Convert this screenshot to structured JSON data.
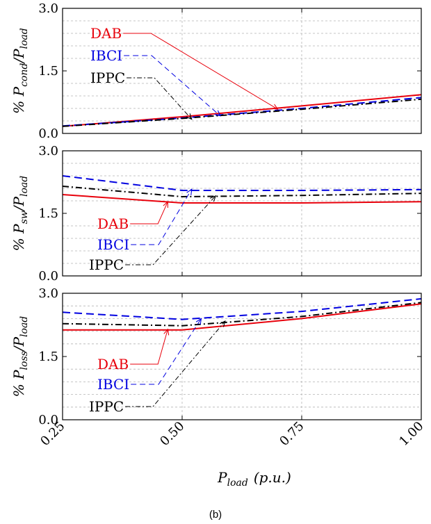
{
  "figure": {
    "caption": "(b)",
    "xlabel": "P_load (p.u.)",
    "xlabel_main": "P",
    "xlabel_sub": "load",
    "xlabel_units": "(p.u.)"
  },
  "colors": {
    "DAB": "#e8000b",
    "IBCI": "#0000e0",
    "IPPC": "#000000",
    "grid": "#b4b4b4"
  },
  "chart_data": [
    {
      "type": "line",
      "title": "",
      "ylabel": "% P_cond/P_load",
      "ylabel_main": "% P",
      "ylabel_sub1": "cond",
      "ylabel_mid": "/P",
      "ylabel_sub2": "load",
      "xlim": [
        0.25,
        1.0
      ],
      "ylim": [
        0.0,
        3.0
      ],
      "yticks": [
        "0.0",
        "1.5",
        "3.0"
      ],
      "grid": true,
      "x": [
        0.25,
        0.5,
        0.75,
        1.0
      ],
      "series": [
        {
          "name": "DAB",
          "style": "solid",
          "values": [
            0.17,
            0.4,
            0.66,
            0.93
          ]
        },
        {
          "name": "IBCI",
          "style": "dashed",
          "values": [
            0.18,
            0.37,
            0.6,
            0.86
          ]
        },
        {
          "name": "IPPC",
          "style": "dashdot",
          "values": [
            0.17,
            0.36,
            0.58,
            0.82
          ]
        }
      ],
      "annotations": [
        {
          "text": "DAB",
          "series": "DAB",
          "target_x": 0.7,
          "target_y": 0.58
        },
        {
          "text": "IBCI",
          "series": "IBCI",
          "target_x": 0.58,
          "target_y": 0.42
        },
        {
          "text": "IPPC",
          "series": "IPPC",
          "target_x": 0.52,
          "target_y": 0.34
        }
      ]
    },
    {
      "type": "line",
      "title": "",
      "ylabel": "% P_sw/P_load",
      "ylabel_main": "% P",
      "ylabel_sub1": "sw",
      "ylabel_mid": "/P",
      "ylabel_sub2": "load",
      "xlim": [
        0.25,
        1.0
      ],
      "ylim": [
        0.0,
        3.0
      ],
      "yticks": [
        "0.0",
        "1.5",
        "3.0"
      ],
      "grid": true,
      "x": [
        0.25,
        0.5,
        0.75,
        1.0
      ],
      "series": [
        {
          "name": "DAB",
          "style": "solid",
          "values": [
            1.95,
            1.75,
            1.75,
            1.78
          ]
        },
        {
          "name": "IBCI",
          "style": "dashed",
          "values": [
            2.4,
            2.05,
            2.05,
            2.07
          ]
        },
        {
          "name": "IPPC",
          "style": "dashdot",
          "values": [
            2.15,
            1.9,
            1.93,
            1.98
          ]
        }
      ],
      "annotations": [
        {
          "text": "DAB",
          "series": "DAB",
          "target_x": 0.47,
          "target_y": 1.78
        },
        {
          "text": "IBCI",
          "series": "IBCI",
          "target_x": 0.52,
          "target_y": 2.08
        },
        {
          "text": "IPPC",
          "series": "IPPC",
          "target_x": 0.57,
          "target_y": 1.92
        }
      ]
    },
    {
      "type": "line",
      "title": "",
      "ylabel": "% P_loss/P_load",
      "ylabel_main": "% P",
      "ylabel_sub1": "loss",
      "ylabel_mid": "/P",
      "ylabel_sub2": "load",
      "xlim": [
        0.25,
        1.0
      ],
      "ylim": [
        0.0,
        3.0
      ],
      "yticks": [
        "0.0",
        "1.5",
        "3.0"
      ],
      "xticks": [
        "0.25",
        "0.50",
        "0.75",
        "1.00"
      ],
      "grid": true,
      "x": [
        0.25,
        0.5,
        0.75,
        1.0
      ],
      "series": [
        {
          "name": "DAB",
          "style": "solid",
          "values": [
            2.13,
            2.13,
            2.4,
            2.75
          ]
        },
        {
          "name": "IBCI",
          "style": "dashed",
          "values": [
            2.55,
            2.38,
            2.57,
            2.87
          ]
        },
        {
          "name": "IPPC",
          "style": "dashdot",
          "values": [
            2.28,
            2.23,
            2.45,
            2.78
          ]
        }
      ],
      "annotations": [
        {
          "text": "DAB",
          "series": "DAB",
          "target_x": 0.47,
          "target_y": 2.15
        },
        {
          "text": "IBCI",
          "series": "IBCI",
          "target_x": 0.54,
          "target_y": 2.4
        },
        {
          "text": "IPPC",
          "series": "IPPC",
          "target_x": 0.59,
          "target_y": 2.34
        }
      ]
    }
  ]
}
